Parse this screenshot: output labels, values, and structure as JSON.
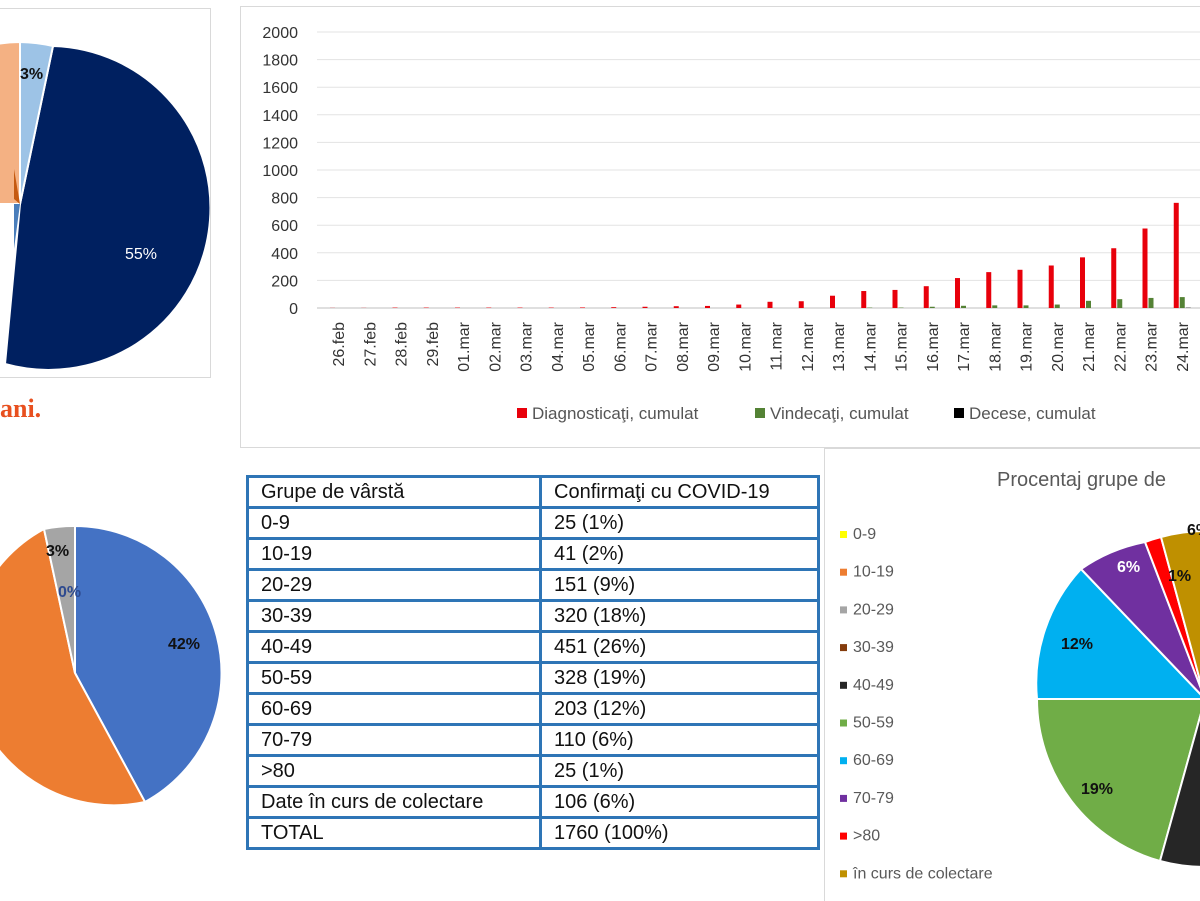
{
  "top_left_pie": {
    "labels": [
      "3%",
      "55%"
    ],
    "colors": {
      "navy": "#002060",
      "light_blue": "#9dc3e6",
      "peach": "#f4b183",
      "orange_brown": "#c55a11",
      "steel": "#4a7ebb"
    }
  },
  "top_left_caption": "ani.",
  "chart_data": [
    {
      "type": "bar",
      "categories": [
        "26.feb",
        "27.feb",
        "28.feb",
        "29.feb",
        "01.mar",
        "02.mar",
        "03.mar",
        "04.mar",
        "05.mar",
        "06.mar",
        "07.mar",
        "08.mar",
        "09.mar",
        "10.mar",
        "11.mar",
        "12.mar",
        "13.mar",
        "14.mar",
        "15.mar",
        "16.mar",
        "17.mar",
        "18.mar",
        "19.mar",
        "20.mar",
        "21.mar",
        "22.mar",
        "23.mar",
        "24.mar"
      ],
      "series": [
        {
          "name": "Diagnosticaţi, cumulat",
          "color": "#e8000b",
          "values": [
            1,
            1,
            3,
            3,
            3,
            3,
            3,
            3,
            4,
            6,
            9,
            13,
            15,
            25,
            45,
            49,
            89,
            123,
            131,
            158,
            217,
            260,
            277,
            308,
            367,
            433,
            576,
            762
          ]
        },
        {
          "name": "Vindecaţi, cumulat",
          "color": "#548235",
          "values": [
            0,
            0,
            0,
            0,
            0,
            0,
            0,
            0,
            0,
            0,
            0,
            0,
            0,
            0,
            0,
            0,
            0,
            3,
            3,
            9,
            16,
            19,
            19,
            25,
            52,
            64,
            73,
            79
          ]
        },
        {
          "name": "Decese, cumulat",
          "color": "#000000",
          "values": [
            0,
            0,
            0,
            0,
            0,
            0,
            0,
            0,
            0,
            0,
            0,
            0,
            0,
            0,
            0,
            0,
            0,
            0,
            0,
            0,
            0,
            0,
            0,
            0,
            0,
            0,
            0,
            2
          ]
        }
      ],
      "y_ticks": [
        0,
        200,
        400,
        600,
        800,
        1000,
        1200,
        1400,
        1600,
        1800,
        2000
      ],
      "ylim": [
        0,
        2000
      ],
      "title": "",
      "xlabel": "",
      "ylabel": ""
    },
    {
      "type": "pie",
      "slices": [
        {
          "label": "42%",
          "color": "#4472c4",
          "value": 42
        },
        {
          "label": "55%",
          "color": "#ed7d31",
          "value": 55
        },
        {
          "label": "3%",
          "color": "#a5a5a5",
          "value": 3
        },
        {
          "label": "0%",
          "color": "#4472c4",
          "value": 0
        }
      ]
    },
    {
      "type": "pie",
      "title": "Procentaj grupe de",
      "legend": [
        "0-9",
        "10-19",
        "20-29",
        "30-39",
        "40-49",
        "50-59",
        "60-69",
        "70-79",
        ">80",
        "în curs de colectare"
      ],
      "legend_colors": [
        "#ffff00",
        "#ed7d31",
        "#a5a5a5",
        "#843c0c",
        "#262626",
        "#70ad47",
        "#00b0f0",
        "#7030a0",
        "#ff0000",
        "#bf9000"
      ],
      "slice_labels": [
        {
          "label": "19%",
          "color": "#70ad47"
        },
        {
          "label": "12%",
          "color": "#00b0f0"
        },
        {
          "label": "6%",
          "color": "#7030a0"
        },
        {
          "label": "1%",
          "color": "#ff0000"
        },
        {
          "label": "6%",
          "color": "#bf9000"
        }
      ]
    }
  ],
  "table": {
    "headers": [
      "Grupe de vârstă",
      "Confirmaţi cu COVID-19"
    ],
    "rows": [
      [
        "0-9",
        "25 (1%)"
      ],
      [
        "10-19",
        "41 (2%)"
      ],
      [
        "20-29",
        "151 (9%)"
      ],
      [
        "30-39",
        "320 (18%)"
      ],
      [
        "40-49",
        "451 (26%)"
      ],
      [
        "50-59",
        "328 (19%)"
      ],
      [
        "60-69",
        "203 (12%)"
      ],
      [
        "70-79",
        "110 (6%)"
      ],
      [
        ">80",
        "25 (1%)"
      ],
      [
        "Date în curs de colectare",
        "106 (6%)"
      ],
      [
        "TOTAL",
        "1760 (100%)"
      ]
    ]
  }
}
